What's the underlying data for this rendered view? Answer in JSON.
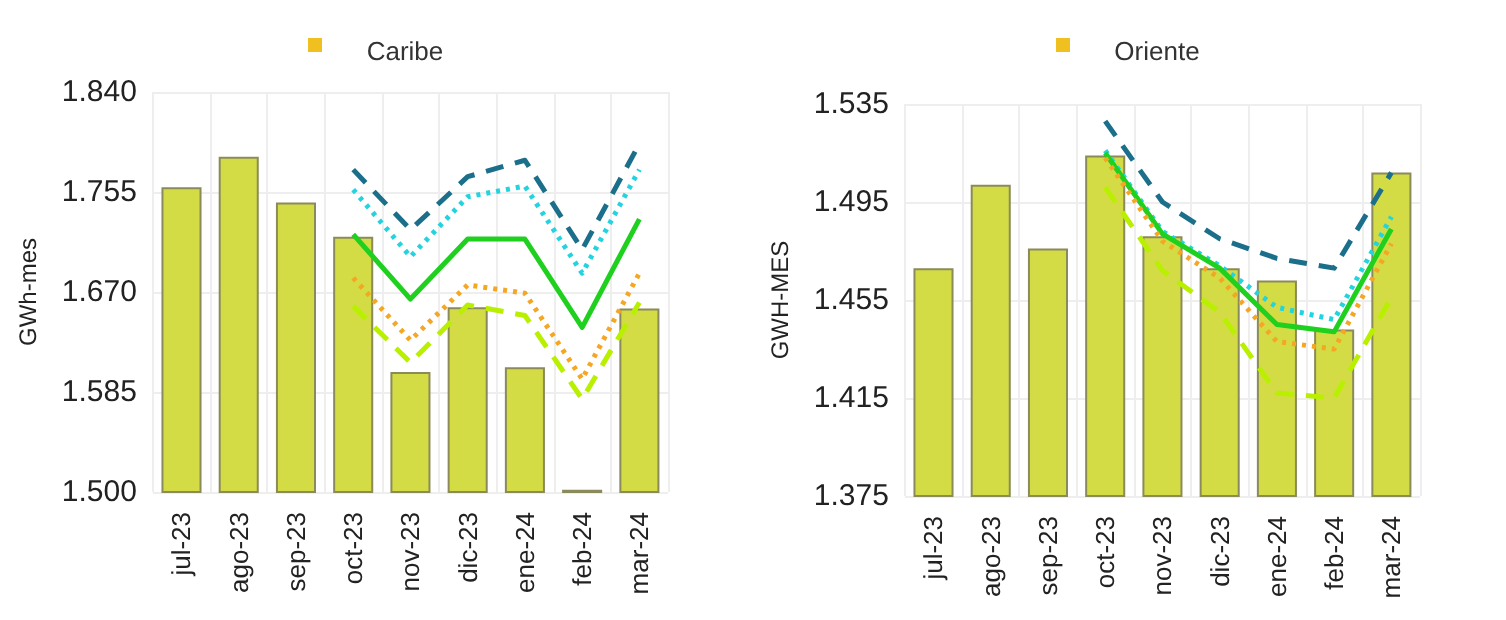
{
  "chart_data": [
    {
      "type": "bar",
      "title": "Caribe",
      "ylabel": "GWh-mes",
      "categories": [
        "jul-23",
        "ago-23",
        "sep-23",
        "oct-23",
        "nov-23",
        "dic-23",
        "ene-24",
        "feb-24",
        "mar-24"
      ],
      "ylim": [
        1500,
        1840
      ],
      "yticks": [
        {
          "value": 1500,
          "label": "1.500"
        },
        {
          "value": 1585,
          "label": "1.585"
        },
        {
          "value": 1670,
          "label": "1.670"
        },
        {
          "value": 1755,
          "label": "1.755"
        },
        {
          "value": 1840,
          "label": "1.840"
        }
      ],
      "grid": true,
      "marker": "none",
      "series": [
        {
          "color": "#d4dc45",
          "values": [
            1759,
            1785,
            1746,
            1717,
            1602,
            1657,
            1606,
            1502,
            1656
          ]
        },
        {
          "type": "line",
          "color": "#1b6f8a",
          "line_style": "dashed",
          "values": [
            null,
            null,
            null,
            1774,
            1723,
            1768,
            1782,
            1706,
            1796
          ]
        },
        {
          "type": "line",
          "color": "#22d3e0",
          "line_style": "dotted",
          "values": [
            null,
            null,
            null,
            1757,
            1700,
            1751,
            1760,
            1686,
            1774
          ]
        },
        {
          "type": "line",
          "color": "#1fd01f",
          "line_style": "solid",
          "values": [
            null,
            null,
            null,
            1719,
            1664,
            1715,
            1715,
            1640,
            1732
          ]
        },
        {
          "type": "line",
          "color": "#f5a623",
          "line_style": "dotted",
          "values": [
            null,
            null,
            null,
            1682,
            1629,
            1676,
            1669,
            1596,
            1686
          ]
        },
        {
          "type": "line",
          "color": "#b8f000",
          "line_style": "dashed",
          "values": [
            null,
            null,
            null,
            1658,
            1610,
            1659,
            1650,
            1579,
            1661
          ]
        }
      ]
    },
    {
      "type": "bar",
      "title": "Oriente",
      "ylabel": "GWH-MES",
      "categories": [
        "jul-23",
        "ago-23",
        "sep-23",
        "oct-23",
        "nov-23",
        "dic-23",
        "ene-24",
        "feb-24",
        "mar-24"
      ],
      "ylim": [
        1375,
        1535
      ],
      "yticks": [
        {
          "value": 1375,
          "label": "1.375"
        },
        {
          "value": 1415,
          "label": "1.415"
        },
        {
          "value": 1455,
          "label": "1.455"
        },
        {
          "value": 1495,
          "label": "1.495"
        },
        {
          "value": 1535,
          "label": "1.535"
        }
      ],
      "grid": true,
      "marker": "none",
      "series": [
        {
          "color": "#d4dc45",
          "values": [
            1468,
            1502,
            1476,
            1514,
            1481,
            1468,
            1463,
            1443,
            1507
          ]
        },
        {
          "type": "line",
          "color": "#1b6f8a",
          "line_style": "dashed",
          "values": [
            null,
            null,
            null,
            1528,
            1495,
            1480,
            1472,
            1468,
            1507
          ]
        },
        {
          "type": "line",
          "color": "#22d3e0",
          "line_style": "dotted",
          "values": [
            null,
            null,
            null,
            1516,
            1483,
            1469,
            1452,
            1447,
            1489
          ]
        },
        {
          "type": "line",
          "color": "#1fd01f",
          "line_style": "solid",
          "values": [
            null,
            null,
            null,
            1515,
            1482,
            1468,
            1445,
            1442,
            1484
          ]
        },
        {
          "type": "line",
          "color": "#f5a623",
          "line_style": "dotted",
          "values": [
            null,
            null,
            null,
            1513,
            1479,
            1464,
            1438,
            1435,
            1478
          ]
        },
        {
          "type": "line",
          "color": "#b8f000",
          "line_style": "dashed",
          "values": [
            null,
            null,
            null,
            1501,
            1467,
            1450,
            1417,
            1415,
            1456
          ]
        }
      ]
    }
  ]
}
